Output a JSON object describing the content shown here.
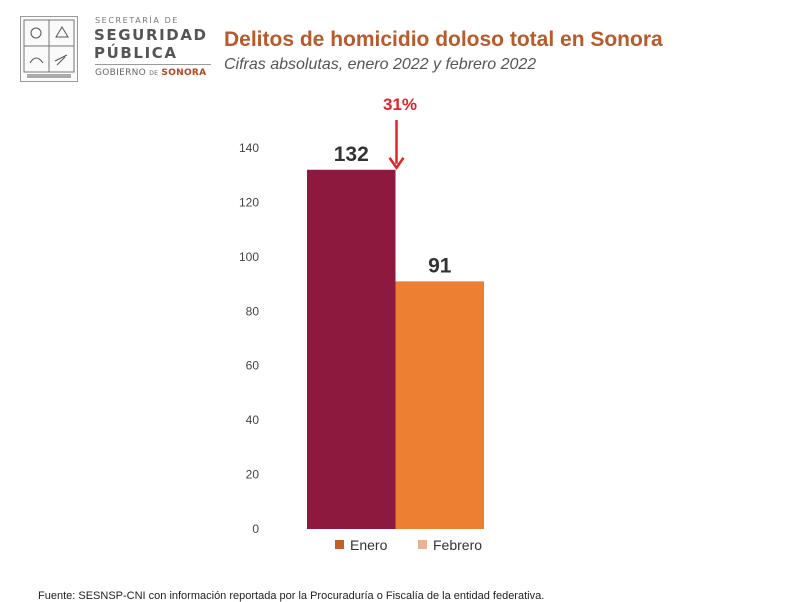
{
  "header": {
    "logo_line_small": "SECRETARÍA DE",
    "logo_line_1": "SEGURIDAD",
    "logo_line_2": "PÚBLICA",
    "logo_gov_1": "GOBIERNO",
    "logo_gov_de": "DE",
    "logo_gov_2": "SONORA",
    "title": "Delitos de homicidio doloso total en Sonora",
    "subtitle": "Cifras absolutas, enero 2022 y febrero 2022"
  },
  "chart_data": {
    "type": "bar",
    "categories": [
      "Enero",
      "Febrero"
    ],
    "values": [
      132,
      91
    ],
    "data_labels": [
      "132",
      "91"
    ],
    "bar_colors": [
      "#8d1a3e",
      "#ec7f31"
    ],
    "legend": [
      {
        "label": "Enero",
        "color": "#c0602b"
      },
      {
        "label": "Febrero",
        "color": "#e6b395"
      }
    ],
    "legend_position": "bottom",
    "ylim": [
      0,
      140
    ],
    "yticks": [
      "0",
      "20",
      "40",
      "60",
      "80",
      "100",
      "120",
      "140"
    ],
    "ytick_values": [
      0,
      20,
      40,
      60,
      80,
      100,
      120,
      140
    ],
    "grid": false,
    "annotation": {
      "text": "31%",
      "color": "#e0242a"
    }
  },
  "footer": {
    "source": "Fuente: SESNSP-CNI con información reportada por la Procuraduría o Fiscalía de la entidad federativa."
  }
}
